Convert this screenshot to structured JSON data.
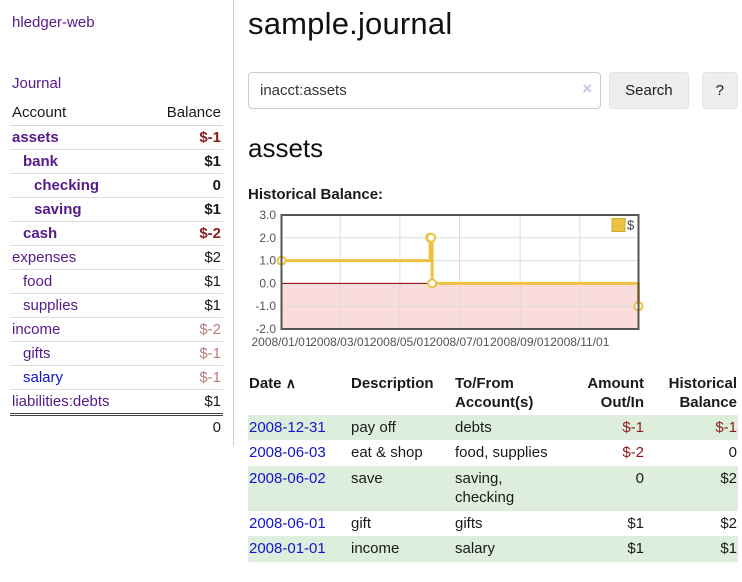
{
  "colors": {
    "link_purple": "#551a8b",
    "link_blue": "#1414cc",
    "negative_strong": "#8e1b1b",
    "negative_soft": "#bb7b7b",
    "row_green": "#ddeedd",
    "series_gold": "#edc240"
  },
  "sidebar": {
    "brand": "hledger-web",
    "nav_journal": "Journal",
    "table": {
      "headers": [
        "Account",
        "Balance"
      ],
      "rows": [
        {
          "name": "assets",
          "balance": "$-1",
          "depth": 1,
          "bold": true,
          "link": "purple"
        },
        {
          "name": "bank",
          "balance": "$1",
          "depth": 2,
          "bold": true,
          "link": "purple"
        },
        {
          "name": "checking",
          "balance": "0",
          "depth": 3,
          "bold": true,
          "link": "purple"
        },
        {
          "name": "saving",
          "balance": "$1",
          "depth": 3,
          "bold": true,
          "link": "purple"
        },
        {
          "name": "cash",
          "balance": "$-2",
          "depth": 2,
          "bold": true,
          "link": "purple"
        },
        {
          "name": "expenses",
          "balance": "$2",
          "depth": 1,
          "bold": false,
          "link": "purple"
        },
        {
          "name": "food",
          "balance": "$1",
          "depth": 2,
          "bold": false,
          "link": "purple"
        },
        {
          "name": "supplies",
          "balance": "$1",
          "depth": 2,
          "bold": false,
          "link": "purple"
        },
        {
          "name": "income",
          "balance": "$-2",
          "depth": 1,
          "bold": false,
          "link": "purple"
        },
        {
          "name": "gifts",
          "balance": "$-1",
          "depth": 2,
          "bold": false,
          "link": "purple"
        },
        {
          "name": "salary",
          "balance": "$-1",
          "depth": 2,
          "bold": false,
          "link": "blue"
        },
        {
          "name": "liabilities:debts",
          "balance": "$1",
          "depth": 1,
          "bold": false,
          "link": "purple"
        }
      ],
      "total": "0"
    }
  },
  "header": {
    "title": "sample.journal"
  },
  "search": {
    "value": "inacct:assets",
    "clear_icon": "×",
    "button": "Search",
    "help": "?"
  },
  "account_page": {
    "heading": "assets",
    "chart_label": "Historical Balance:"
  },
  "chart_data": {
    "type": "line",
    "title": "Historical Balance:",
    "step": true,
    "series": [
      {
        "name": "$",
        "color": "#edc240",
        "points": [
          [
            "2008-01-01",
            1
          ],
          [
            "2008-06-01",
            2
          ],
          [
            "2008-06-02",
            2
          ],
          [
            "2008-06-03",
            0
          ],
          [
            "2008-12-31",
            -1
          ]
        ]
      }
    ],
    "xlim": [
      "2008-01-01",
      "2008-12-31"
    ],
    "ylim": [
      -2,
      3
    ],
    "x_ticks": [
      [
        "2008-01-01",
        "2008/01/01"
      ],
      [
        "2008-03-01",
        "2008/03/01"
      ],
      [
        "2008-05-01",
        "2008/05/01"
      ],
      [
        "2008-07-01",
        "2008/07/01"
      ],
      [
        "2008-09-01",
        "2008/09/01"
      ],
      [
        "2008-11-01",
        "2008/11/01"
      ]
    ],
    "y_ticks": [
      [
        3,
        "3.0"
      ],
      [
        2,
        "2.0"
      ],
      [
        1,
        "1.0"
      ],
      [
        0,
        "0.0"
      ],
      [
        -1,
        "-1.0"
      ],
      [
        -2,
        "-2.0"
      ]
    ],
    "grid": true,
    "negative_fill": "#fbdcdc",
    "zero_line_color": "#8b0000",
    "legend": {
      "label": "$",
      "position": "top-right"
    }
  },
  "register": {
    "sort_icon": "∧",
    "headers": [
      {
        "line1": "Date",
        "line2": ""
      },
      {
        "line1": "Description",
        "line2": ""
      },
      {
        "line1": "To/From",
        "line2": "Account(s)"
      },
      {
        "line1": "Amount",
        "line2": "Out/In"
      },
      {
        "line1": "Historical",
        "line2": "Balance"
      }
    ],
    "rows": [
      {
        "date": "2008-12-31",
        "description": "pay off",
        "accounts": "debts",
        "amount": "$-1",
        "balance": "$-1"
      },
      {
        "date": "2008-06-03",
        "description": "eat & shop",
        "accounts": "food, supplies",
        "amount": "$-2",
        "balance": "0"
      },
      {
        "date": "2008-06-02",
        "description": "save",
        "accounts": "saving,\nchecking",
        "amount": "0",
        "balance": "$2"
      },
      {
        "date": "2008-06-01",
        "description": "gift",
        "accounts": "gifts",
        "amount": "$1",
        "balance": "$2"
      },
      {
        "date": "2008-01-01",
        "description": "income",
        "accounts": "salary",
        "amount": "$1",
        "balance": "$1"
      }
    ]
  }
}
